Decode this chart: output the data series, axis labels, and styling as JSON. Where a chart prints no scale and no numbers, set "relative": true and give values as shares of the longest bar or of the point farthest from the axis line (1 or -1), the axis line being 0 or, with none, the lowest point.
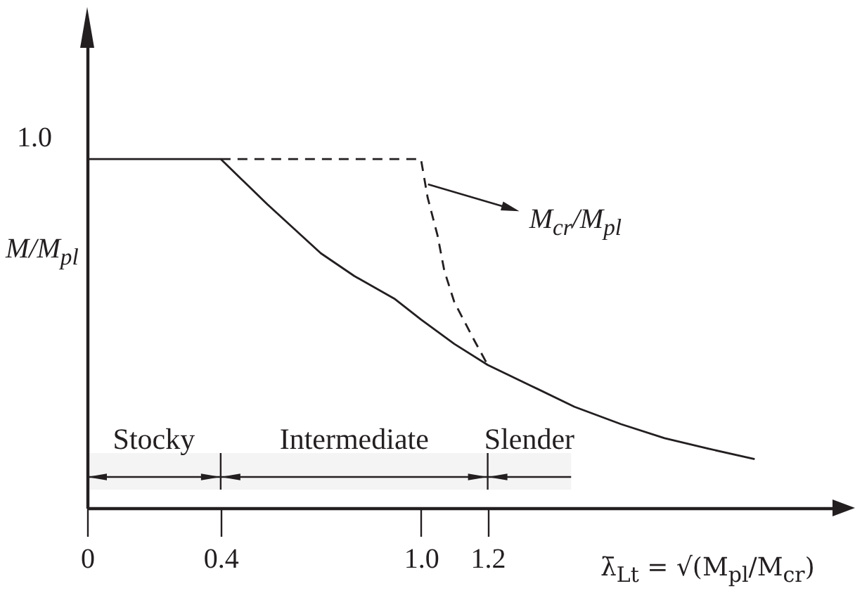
{
  "chart_data": {
    "type": "line",
    "relative": true,
    "xlabel": "λ̄$_{Lt}$ = √(M$_{pl}$/M$_{cr}$)",
    "ylabel": "M/M$_{pl}$",
    "xlim": [
      0,
      2.25
    ],
    "xticks": [
      0,
      0.4,
      {
        "value": 1,
        "label": "1.0"
      },
      1.2
    ],
    "series": [
      {
        "color": "#231f20",
        "x": [
          0,
          0.4,
          0.47,
          0.54,
          0.62,
          0.7,
          0.8,
          0.92,
          1.0,
          1.1,
          1.2,
          1.33,
          1.46,
          1.6,
          1.73,
          1.86,
          2.0
        ],
        "values": [
          1,
          1,
          0.935,
          0.87,
          0.8,
          0.73,
          0.665,
          0.6,
          0.54,
          0.47,
          0.41,
          0.35,
          0.29,
          0.24,
          0.2,
          0.17,
          0.14
        ]
      },
      {
        "name": "M$_{cr}$/M$_{pl}$",
        "color": "#231f20",
        "line_style": "dashed",
        "x": [
          0.4,
          1.0,
          1.02,
          1.05,
          1.07,
          1.1,
          1.16,
          1.2
        ],
        "values": [
          1,
          1,
          0.89,
          0.78,
          0.68,
          0.59,
          0.48,
          0.41
        ]
      }
    ],
    "bands": [
      {
        "axis": "x",
        "from": 0,
        "to": 0.4,
        "label": "Stocky"
      },
      {
        "axis": "x",
        "from": 0.4,
        "to": 1.2,
        "label": "Intermediate"
      },
      {
        "axis": "x",
        "from": 1.2,
        "to": 1.45,
        "label": "Slender"
      }
    ],
    "annotations": [
      "1.0"
    ]
  }
}
